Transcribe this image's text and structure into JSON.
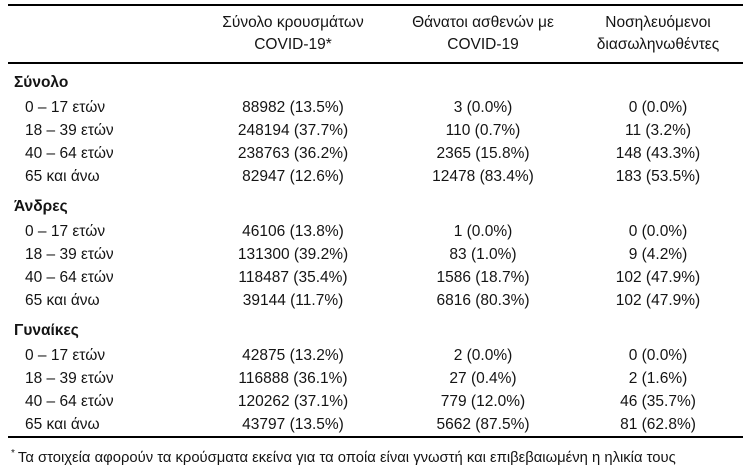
{
  "colors": {
    "background": "#ffffff",
    "text": "#141414",
    "rule": "#000000"
  },
  "table": {
    "col_headers": [
      {
        "line1": "Σύνολο κρουσμάτων",
        "line2": "COVID-19*"
      },
      {
        "line1": "Θάνατοι ασθενών με",
        "line2": "COVID-19"
      },
      {
        "line1": "Νοσηλευόμενοι",
        "line2": "διασωληνωθέντες"
      }
    ],
    "sections": [
      {
        "label": "Σύνολο",
        "rows": [
          {
            "label": "0 – 17 ετών",
            "cases": "88982 (13.5%)",
            "deaths": "3 (0.0%)",
            "intubated": "0 (0.0%)"
          },
          {
            "label": "18 – 39 ετών",
            "cases": "248194 (37.7%)",
            "deaths": "110 (0.7%)",
            "intubated": "11 (3.2%)"
          },
          {
            "label": "40 – 64 ετών",
            "cases": "238763 (36.2%)",
            "deaths": "2365 (15.8%)",
            "intubated": "148 (43.3%)"
          },
          {
            "label": "65 και άνω",
            "cases": "82947 (12.6%)",
            "deaths": "12478 (83.4%)",
            "intubated": "183 (53.5%)"
          }
        ]
      },
      {
        "label": "Άνδρες",
        "rows": [
          {
            "label": "0 – 17 ετών",
            "cases": "46106 (13.8%)",
            "deaths": "1 (0.0%)",
            "intubated": "0 (0.0%)"
          },
          {
            "label": "18 – 39 ετών",
            "cases": "131300 (39.2%)",
            "deaths": "83 (1.0%)",
            "intubated": "9 (4.2%)"
          },
          {
            "label": "40 – 64 ετών",
            "cases": "118487 (35.4%)",
            "deaths": "1586 (18.7%)",
            "intubated": "102 (47.9%)"
          },
          {
            "label": "65 και άνω",
            "cases": "39144 (11.7%)",
            "deaths": "6816 (80.3%)",
            "intubated": "102 (47.9%)"
          }
        ]
      },
      {
        "label": "Γυναίκες",
        "rows": [
          {
            "label": "0 – 17 ετών",
            "cases": "42875 (13.2%)",
            "deaths": "2 (0.0%)",
            "intubated": "0 (0.0%)"
          },
          {
            "label": "18 – 39 ετών",
            "cases": "116888 (36.1%)",
            "deaths": "27 (0.4%)",
            "intubated": "2 (1.6%)"
          },
          {
            "label": "40 – 64 ετών",
            "cases": "120262 (37.1%)",
            "deaths": "779 (12.0%)",
            "intubated": "46 (35.7%)"
          },
          {
            "label": "65 και άνω",
            "cases": "43797 (13.5%)",
            "deaths": "5662 (87.5%)",
            "intubated": "81 (62.8%)"
          }
        ]
      }
    ],
    "footnote": {
      "marker": "*",
      "text": "Τα στοιχεία αφορούν τα κρούσματα εκείνα για τα οποία είναι γνωστή και επιβεβαιωμένη η ηλικία τους"
    }
  }
}
